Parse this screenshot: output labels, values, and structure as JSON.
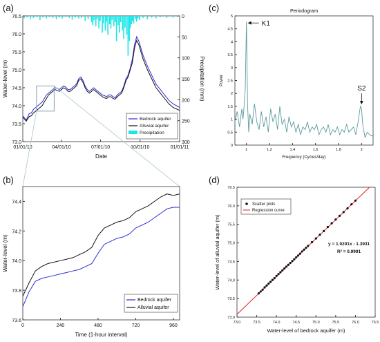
{
  "colors": {
    "bedrock": "#2b2bd6",
    "alluvial": "#111111",
    "precip": "#19e6e6",
    "periodogram": "#5a9aa0",
    "regression": "#e02020",
    "scatter": "#111111",
    "inset_box": "#7f9fb0",
    "zoom_line": "#a9c4cf"
  },
  "chart_data": [
    {
      "id": "a",
      "type": "line",
      "panel_label": "(a)",
      "xlabel": "Date",
      "ylabel": "Water-level (m)",
      "y2label": "Precipitation (mm)",
      "x_ticks": [
        "01/01/10",
        "04/01/10",
        "07/01/10",
        "10/01/10",
        "01/01/11"
      ],
      "xlim_days": [
        0,
        365
      ],
      "ylim": [
        73.0,
        76.5
      ],
      "y_ticks": [
        "73.0",
        "73.5",
        "74.0",
        "74.5",
        "75.0",
        "75.5",
        "76.0",
        "76.5"
      ],
      "y2lim": [
        300,
        0
      ],
      "y2_ticks": [
        "0",
        "50",
        "100",
        "150",
        "200",
        "250",
        "300"
      ],
      "legend": [
        "Bedrock aquifer",
        "Alluvial aquifer",
        "Precipitation"
      ],
      "legend_position": "bottom-right",
      "series": [
        {
          "name": "Bedrock aquifer",
          "x": [
            0,
            8,
            15,
            20,
            25,
            30,
            35,
            40,
            45,
            50,
            55,
            60,
            65,
            70,
            75,
            80,
            85,
            90,
            95,
            100,
            105,
            110,
            115,
            120,
            125,
            130,
            135,
            140,
            145,
            150,
            155,
            160,
            165,
            170,
            175,
            180,
            185,
            190,
            195,
            200,
            205,
            210,
            215,
            220,
            225,
            230,
            235,
            240,
            245,
            250,
            255,
            260,
            265,
            270,
            275,
            280,
            290,
            300,
            310,
            320,
            330,
            340,
            350,
            365
          ],
          "y": [
            73.72,
            73.6,
            73.78,
            73.8,
            73.9,
            73.95,
            74.0,
            74.05,
            74.1,
            74.2,
            74.3,
            74.35,
            74.4,
            74.45,
            74.5,
            74.48,
            74.45,
            74.5,
            74.55,
            74.52,
            74.45,
            74.45,
            74.5,
            74.55,
            74.6,
            74.75,
            74.8,
            74.7,
            74.55,
            74.45,
            74.4,
            74.45,
            74.5,
            74.45,
            74.4,
            74.35,
            74.3,
            74.28,
            74.25,
            74.3,
            74.3,
            74.25,
            74.22,
            74.3,
            74.35,
            74.4,
            74.55,
            74.75,
            74.85,
            75.05,
            75.3,
            75.7,
            75.92,
            75.8,
            75.6,
            75.4,
            75.1,
            74.85,
            74.6,
            74.45,
            74.3,
            74.15,
            74.05,
            73.95
          ]
        },
        {
          "name": "Alluvial aquifer",
          "x": [
            0,
            8,
            15,
            20,
            25,
            30,
            35,
            40,
            45,
            50,
            55,
            60,
            65,
            70,
            75,
            80,
            85,
            90,
            95,
            100,
            105,
            110,
            115,
            120,
            125,
            130,
            135,
            140,
            145,
            150,
            155,
            160,
            165,
            170,
            175,
            180,
            185,
            190,
            195,
            200,
            205,
            210,
            215,
            220,
            225,
            230,
            235,
            240,
            245,
            250,
            255,
            260,
            265,
            270,
            275,
            280,
            290,
            300,
            310,
            320,
            330,
            340,
            350,
            365
          ],
          "y": [
            73.68,
            73.57,
            73.7,
            73.72,
            73.8,
            73.85,
            73.9,
            73.95,
            74.0,
            74.1,
            74.2,
            74.3,
            74.35,
            74.4,
            74.45,
            74.42,
            74.4,
            74.45,
            74.5,
            74.47,
            74.4,
            74.4,
            74.45,
            74.5,
            74.55,
            74.7,
            74.75,
            74.65,
            74.5,
            74.4,
            74.35,
            74.4,
            74.45,
            74.4,
            74.35,
            74.3,
            74.25,
            74.22,
            74.2,
            74.25,
            74.25,
            74.2,
            74.18,
            74.25,
            74.3,
            74.35,
            74.5,
            74.7,
            74.8,
            75.0,
            75.2,
            75.6,
            75.82,
            75.7,
            75.5,
            75.3,
            75.0,
            74.75,
            74.5,
            74.35,
            74.2,
            74.05,
            73.95,
            73.87
          ]
        }
      ],
      "precipitation": {
        "x": [
          3,
          10,
          18,
          25,
          33,
          40,
          47,
          55,
          62,
          70,
          78,
          85,
          92,
          100,
          108,
          115,
          122,
          130,
          137,
          145,
          152,
          160,
          163,
          166,
          170,
          173,
          177,
          180,
          185,
          188,
          192,
          195,
          198,
          202,
          205,
          208,
          212,
          215,
          218,
          222,
          225,
          228,
          232,
          235,
          238,
          242,
          245,
          248,
          250,
          253,
          255,
          258,
          262,
          265,
          268,
          272,
          280,
          290,
          300,
          310,
          320,
          335,
          350,
          360
        ],
        "y": [
          6,
          4,
          8,
          5,
          3,
          10,
          4,
          6,
          3,
          5,
          8,
          4,
          6,
          3,
          5,
          9,
          4,
          6,
          5,
          12,
          8,
          15,
          22,
          10,
          25,
          8,
          30,
          12,
          40,
          18,
          35,
          14,
          45,
          20,
          30,
          10,
          25,
          15,
          60,
          22,
          40,
          15,
          35,
          55,
          28,
          45,
          95,
          60,
          30,
          20,
          12,
          18,
          8,
          14,
          6,
          10,
          5,
          8,
          4,
          6,
          3,
          5,
          4,
          3
        ]
      },
      "inset_box": {
        "x0_days": 32,
        "x1_days": 73,
        "y0": 73.85,
        "y1": 74.55
      }
    },
    {
      "id": "b",
      "type": "line",
      "panel_label": "(b)",
      "xlabel": "Time (1-hour interval)",
      "ylabel": "Water-level (m)",
      "xlim": [
        0,
        1000
      ],
      "x_ticks": [
        "0",
        "240",
        "480",
        "720",
        "960"
      ],
      "ylim": [
        73.6,
        74.5
      ],
      "y_ticks": [
        "73.6",
        "73.8",
        "74.0",
        "74.2",
        "74.4"
      ],
      "legend": [
        "Bedrock aquifer",
        "Alluvial aquifer"
      ],
      "legend_position": "bottom-right",
      "series": [
        {
          "name": "Bedrock aquifer",
          "x": [
            0,
            40,
            80,
            120,
            160,
            200,
            240,
            280,
            320,
            360,
            400,
            440,
            480,
            520,
            560,
            600,
            640,
            680,
            720,
            760,
            800,
            840,
            880,
            920,
            960,
            1000
          ],
          "y": [
            73.69,
            73.79,
            73.86,
            73.88,
            73.89,
            73.9,
            73.91,
            73.92,
            73.93,
            73.94,
            73.96,
            73.98,
            74.05,
            74.11,
            74.13,
            74.15,
            74.16,
            74.18,
            74.22,
            74.24,
            74.26,
            74.29,
            74.32,
            74.35,
            74.36,
            74.36
          ]
        },
        {
          "name": "Alluvial aquifer",
          "x": [
            0,
            40,
            80,
            120,
            160,
            200,
            240,
            280,
            320,
            360,
            400,
            440,
            480,
            520,
            560,
            600,
            640,
            680,
            720,
            760,
            800,
            840,
            880,
            920,
            960,
            1000
          ],
          "y": [
            73.76,
            73.85,
            73.93,
            73.96,
            73.98,
            73.99,
            74.0,
            74.01,
            74.02,
            74.04,
            74.06,
            74.09,
            74.17,
            74.22,
            74.24,
            74.26,
            74.27,
            74.29,
            74.33,
            74.35,
            74.37,
            74.4,
            74.43,
            74.45,
            74.44,
            74.45
          ]
        }
      ]
    },
    {
      "id": "c",
      "type": "line",
      "panel_label": "(c)",
      "title": "Periodogram",
      "xlabel": "Frequency (Cycles/day)",
      "ylabel": "Power",
      "xlim": [
        0.9,
        2.1
      ],
      "x_ticks": [
        "1",
        "1.2",
        "1.4",
        "1.6",
        "1.8",
        "2"
      ],
      "ylim": [
        0,
        5
      ],
      "y_ticks": [
        "0",
        "0.5",
        "1",
        "1.5",
        "2",
        "2.5",
        "3",
        "3.5",
        "4",
        "4.5",
        "5"
      ],
      "annotations": [
        {
          "text": "K1",
          "x": 1.0,
          "y": 4.78
        },
        {
          "text": "S2",
          "x": 2.0,
          "y": 1.52
        }
      ],
      "series": [
        {
          "name": "",
          "x": [
            0.9,
            0.92,
            0.94,
            0.96,
            0.97,
            0.98,
            0.99,
            1.0,
            1.01,
            1.02,
            1.03,
            1.05,
            1.07,
            1.09,
            1.11,
            1.13,
            1.15,
            1.17,
            1.19,
            1.21,
            1.23,
            1.25,
            1.27,
            1.29,
            1.31,
            1.33,
            1.35,
            1.37,
            1.39,
            1.41,
            1.43,
            1.45,
            1.47,
            1.49,
            1.51,
            1.53,
            1.55,
            1.57,
            1.59,
            1.61,
            1.63,
            1.65,
            1.67,
            1.69,
            1.71,
            1.73,
            1.75,
            1.77,
            1.79,
            1.81,
            1.83,
            1.85,
            1.87,
            1.89,
            1.91,
            1.93,
            1.95,
            1.97,
            1.99,
            2.0,
            2.01,
            2.03,
            2.05,
            2.07,
            2.09,
            2.1
          ],
          "y": [
            0.9,
            1.3,
            0.7,
            1.4,
            1.0,
            1.5,
            2.2,
            4.78,
            1.6,
            0.5,
            1.2,
            0.8,
            1.6,
            0.9,
            0.6,
            1.3,
            0.7,
            1.1,
            0.5,
            1.4,
            0.9,
            1.2,
            0.6,
            1.5,
            0.8,
            1.0,
            0.5,
            1.1,
            0.7,
            0.9,
            0.5,
            0.8,
            0.4,
            0.7,
            0.6,
            0.9,
            0.5,
            0.7,
            0.6,
            0.8,
            0.4,
            0.6,
            0.7,
            0.5,
            0.8,
            0.4,
            0.6,
            0.5,
            0.7,
            0.4,
            0.6,
            0.5,
            0.8,
            0.5,
            0.6,
            0.7,
            0.4,
            0.9,
            1.52,
            1.4,
            0.8,
            0.3,
            0.5,
            0.4,
            0.35,
            0.4
          ]
        }
      ]
    },
    {
      "id": "d",
      "type": "scatter",
      "panel_label": "(d)",
      "xlabel": "Water-level of bedrock aquifer (m)",
      "ylabel": "Water-level of alluvial aquifer (m)",
      "xlim": [
        73.0,
        76.5
      ],
      "ylim": [
        73.0,
        76.5
      ],
      "x_ticks": [
        "73.0",
        "73.5",
        "74.0",
        "74.5",
        "75.0",
        "75.5",
        "76.0",
        "76.5"
      ],
      "y_ticks": [
        "73.0",
        "73.5",
        "74.0",
        "74.5",
        "75.0",
        "75.5",
        "76.0",
        "76.5"
      ],
      "legend": [
        "Scatter plots",
        "Regression curve"
      ],
      "legend_position": "top-left",
      "equation": "y = 1.0201x - 1.3931",
      "r_squared": "R² = 0.9991",
      "regression": {
        "slope": 1.0201,
        "intercept": -1.3931
      },
      "points_x": [
        73.55,
        73.6,
        73.65,
        73.7,
        73.75,
        73.8,
        73.85,
        73.9,
        73.95,
        74.0,
        74.05,
        74.1,
        74.15,
        74.2,
        74.25,
        74.3,
        74.35,
        74.4,
        74.45,
        74.5,
        74.55,
        74.6,
        74.65,
        74.7,
        74.75,
        74.8,
        74.9,
        75.0,
        75.1,
        75.2,
        75.3,
        75.4,
        75.5,
        75.6,
        75.7,
        75.8,
        75.9,
        76.0
      ],
      "points_y": [
        73.64,
        73.69,
        73.74,
        73.8,
        73.85,
        73.9,
        73.95,
        74.0,
        74.05,
        74.11,
        74.16,
        74.21,
        74.26,
        74.31,
        74.36,
        74.41,
        74.46,
        74.51,
        74.56,
        74.61,
        74.66,
        74.71,
        74.77,
        74.82,
        74.87,
        74.92,
        75.02,
        75.12,
        75.22,
        75.32,
        75.43,
        75.53,
        75.63,
        75.73,
        75.83,
        75.93,
        76.04,
        76.14
      ]
    }
  ]
}
